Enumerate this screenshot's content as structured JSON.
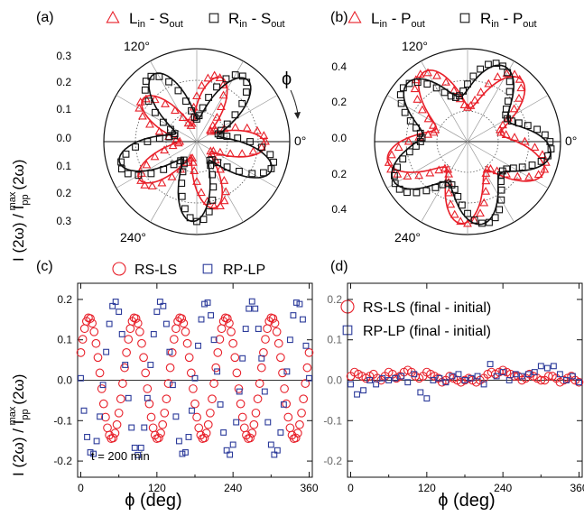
{
  "colors": {
    "red": "#e8202a",
    "blue": "#2b3a9a",
    "black": "#111111",
    "grid": "#555555"
  },
  "chart_data": [
    {
      "panel": "(a)",
      "type": "scatter",
      "polar": true,
      "legend": [
        {
          "marker": "triangle",
          "color": "red",
          "label_main": "L",
          "label_sub1": "in",
          "mid": " - S",
          "label_sub2": "out"
        },
        {
          "marker": "square",
          "color": "black",
          "label_main": "R",
          "label_sub1": "in",
          "mid": " - S",
          "label_sub2": "out"
        }
      ],
      "ylabel": "I (2ω) / I",
      "ylabel_sub": "pp",
      "ylabel_sup": "max",
      "ylabel_tail": "(2ω)",
      "radial_ticks": [
        "0.3",
        "0.2",
        "0.1",
        "0.0",
        "0.1",
        "0.2",
        "0.3"
      ],
      "angle_labels": [
        "120°",
        "0°",
        "240°"
      ],
      "phi_label": "ϕ",
      "radial_max": 0.33,
      "series": [
        {
          "name": "L_in - S_out",
          "color": "red",
          "marker": "triangle",
          "base": 0.152,
          "amp": 0.092,
          "phase_deg": -6,
          "fit": true
        },
        {
          "name": "R_in - S_out",
          "color": "black",
          "marker": "square",
          "base": 0.182,
          "amp": 0.102,
          "phase_deg": 86,
          "fit": true
        }
      ]
    },
    {
      "panel": "(b)",
      "type": "scatter",
      "polar": true,
      "legend": [
        {
          "marker": "triangle",
          "color": "red",
          "label_main": "L",
          "label_sub1": "in",
          "mid": " - P",
          "label_sub2": "out"
        },
        {
          "marker": "square",
          "color": "black",
          "label_main": "R",
          "label_sub1": "in",
          "mid": " - P",
          "label_sub2": "out"
        }
      ],
      "radial_ticks": [
        "0.4",
        "0.2",
        "0.0",
        "0.2",
        "0.4"
      ],
      "angle_labels": [
        "120°",
        "0°",
        "240°"
      ],
      "radial_max": 0.56,
      "series": [
        {
          "name": "L_in - P_out",
          "color": "red",
          "marker": "triangle",
          "base": 0.35,
          "amp": 0.145,
          "phase_deg": 92,
          "fit": true
        },
        {
          "name": "R_in - P_out",
          "color": "black",
          "marker": "square",
          "base": 0.39,
          "amp": 0.115,
          "phase_deg": 22,
          "fit": true
        }
      ]
    },
    {
      "panel": "(c)",
      "type": "scatter",
      "legend": [
        {
          "marker": "circle",
          "color": "red",
          "label": "RS-LS"
        },
        {
          "marker": "square",
          "color": "blue",
          "label": "RP-LP"
        }
      ],
      "xlabel": "ϕ (deg)",
      "xlim": [
        -5,
        365
      ],
      "ylim": [
        -0.24,
        0.24
      ],
      "xticks": [
        "0",
        "120",
        "240",
        "360"
      ],
      "yticks": [
        "0.2",
        "0.1",
        "0.0",
        "-0.1",
        "-0.2"
      ],
      "annotation": "t = 200 min",
      "series": [
        {
          "name": "RS-LS",
          "color": "red",
          "marker": "circle",
          "amp": 0.15,
          "period_deg": 72,
          "phase_deg": 5,
          "offset": 0.005,
          "step_deg": 3
        },
        {
          "name": "RP-LP",
          "color": "blue",
          "marker": "square",
          "amp": 0.19,
          "period_deg": 72,
          "phase_deg": 0,
          "offset": 0.005,
          "step_deg": 5
        }
      ]
    },
    {
      "panel": "(d)",
      "type": "scatter",
      "legend": [
        {
          "marker": "circle",
          "color": "red",
          "label": "RS-LS (final - initial)"
        },
        {
          "marker": "square",
          "color": "blue",
          "label": "RP-LP (final - initial)"
        }
      ],
      "xlabel": "ϕ (deg)",
      "xlim": [
        -5,
        365
      ],
      "ylim": [
        -0.24,
        0.24
      ],
      "xticks": [
        "0",
        "120",
        "240",
        "360"
      ],
      "yticks": [
        "0.2",
        "0.1",
        "0.0",
        "-0.1",
        "-0.2"
      ],
      "series": [
        {
          "name": "RS-LS (final - initial)",
          "color": "red",
          "marker": "circle",
          "step_deg": 6,
          "values": [
            0.01,
            0.02,
            0.015,
            0.01,
            0.005,
            0.01,
            0.015,
            0.005,
            0.0,
            0.01,
            0.02,
            0.015,
            0.005,
            0.01,
            0.02,
            0.025,
            0.02,
            0.01,
            0.005,
            0.01,
            0.02,
            0.015,
            0.01,
            0.005,
            -0.005,
            0.0,
            0.01,
            0.005,
            0.0,
            -0.005,
            0.0,
            0.005,
            0.0,
            -0.005,
            0.0,
            0.005,
            0.015,
            0.02,
            0.015,
            0.02,
            0.025,
            0.02,
            0.015,
            0.01,
            0.01,
            0.0,
            0.005,
            0.015,
            0.01,
            0.005,
            0.0,
            0.0,
            0.01,
            0.01,
            0.005,
            -0.005,
            0.0,
            0.005,
            0.01,
            0.0,
            -0.005
          ]
        },
        {
          "name": "RP-LP (final - initial)",
          "color": "blue",
          "marker": "square",
          "step_deg": 10,
          "values": [
            -0.01,
            -0.035,
            -0.025,
            0.0,
            -0.01,
            0.005,
            0.0,
            0.005,
            0.01,
            -0.005,
            0.015,
            -0.03,
            -0.045,
            0.0,
            0.005,
            -0.005,
            0.01,
            0.015,
            0.0,
            0.005,
            0.01,
            -0.01,
            0.04,
            0.01,
            0.02,
            0.0,
            0.015,
            0.01,
            0.015,
            0.02,
            0.035,
            0.03,
            0.035,
            0.015,
            0.0,
            0.01,
            -0.005
          ]
        }
      ]
    }
  ]
}
